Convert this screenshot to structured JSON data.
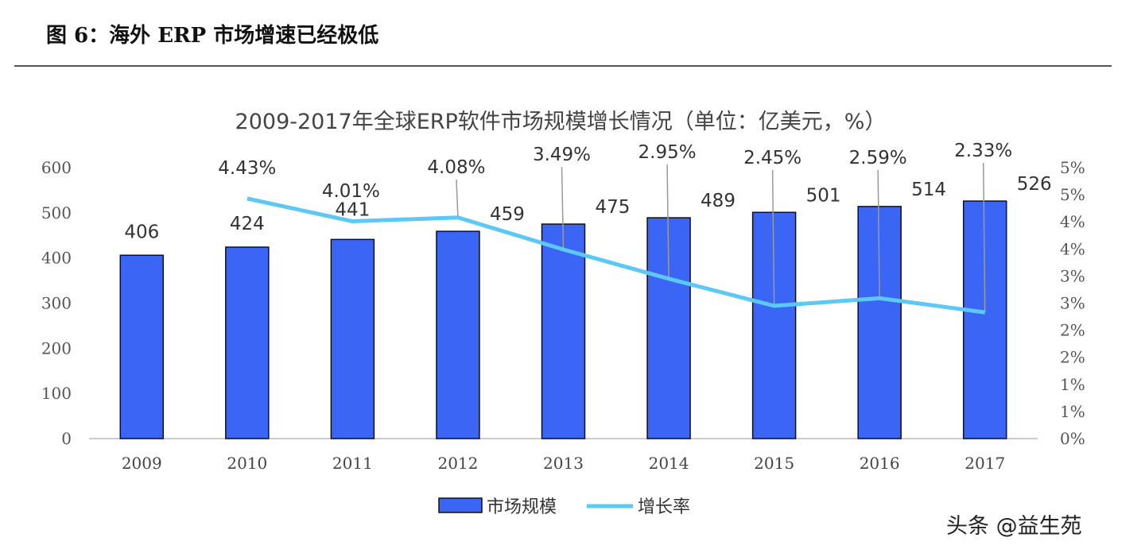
{
  "figure_title": "图 6：海外 ERP 市场增速已经极低",
  "watermark": "头条 @益生苑",
  "chart_data": {
    "type": "bar+line",
    "title": "2009-2017年全球ERP软件市场规模增长情况（单位：亿美元，%）",
    "categories": [
      "2009",
      "2010",
      "2011",
      "2012",
      "2013",
      "2014",
      "2015",
      "2016",
      "2017"
    ],
    "series": [
      {
        "name": "市场规模",
        "type": "bar",
        "axis": "left",
        "color": "#3b66f5",
        "values": [
          406,
          424,
          441,
          459,
          475,
          489,
          501,
          514,
          526
        ],
        "labels": [
          "406",
          "424",
          "441",
          "459",
          "475",
          "489",
          "501",
          "514",
          "526"
        ]
      },
      {
        "name": "增长率",
        "type": "line",
        "axis": "right",
        "color": "#5bc8f5",
        "values": [
          null,
          4.43,
          4.01,
          4.08,
          3.49,
          2.95,
          2.45,
          2.59,
          2.33
        ],
        "labels": [
          "",
          "4.43%",
          "4.01%",
          "4.08%",
          "3.49%",
          "2.95%",
          "2.45%",
          "2.59%",
          "2.33%"
        ]
      }
    ],
    "y_left": {
      "range": [
        0,
        600
      ],
      "ticks": [
        "0",
        "100",
        "200",
        "300",
        "400",
        "500",
        "600"
      ]
    },
    "y_right": {
      "range": [
        0,
        5
      ],
      "ticks": [
        "0%",
        "1%",
        "1%",
        "2%",
        "2%",
        "3%",
        "3%",
        "4%",
        "4%",
        "5%",
        "5%"
      ]
    },
    "grid": false,
    "legend": "bottom"
  }
}
